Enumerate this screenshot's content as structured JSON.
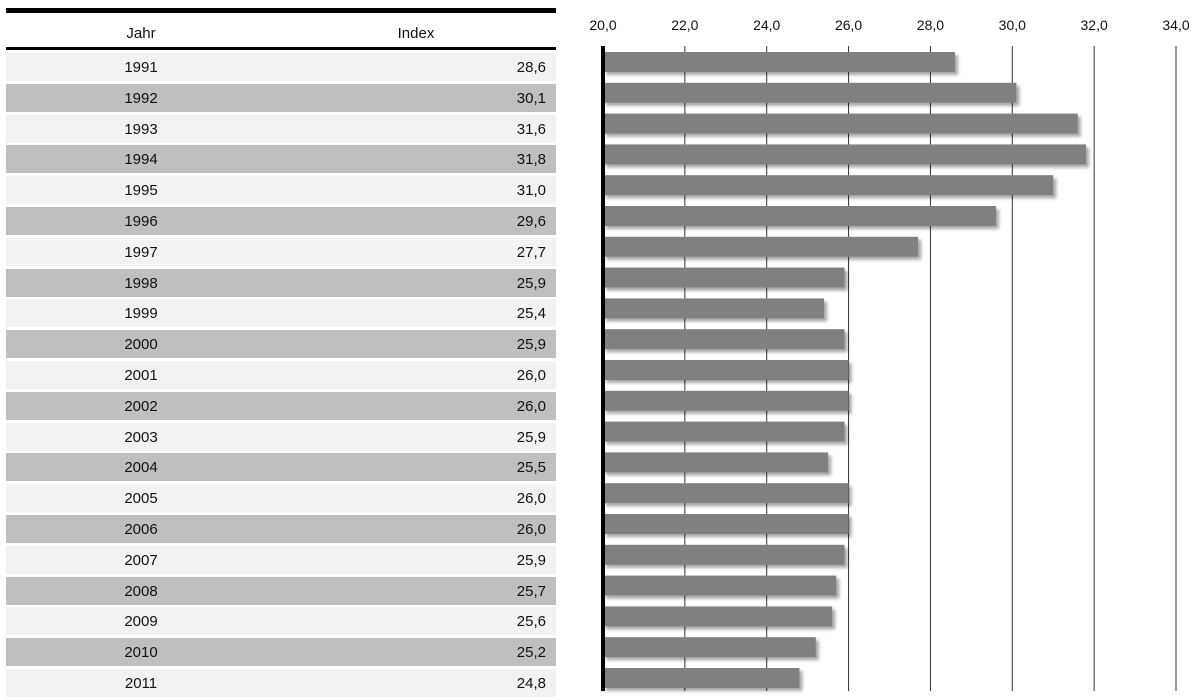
{
  "table": {
    "header_year": "Jahr",
    "header_value": "Index"
  },
  "chart_data": {
    "type": "bar",
    "orientation": "horizontal",
    "categories": [
      "1991",
      "1992",
      "1993",
      "1994",
      "1995",
      "1996",
      "1997",
      "1998",
      "1999",
      "2000",
      "2001",
      "2002",
      "2003",
      "2004",
      "2005",
      "2006",
      "2007",
      "2008",
      "2009",
      "2010",
      "2011"
    ],
    "values": [
      28.6,
      30.1,
      31.6,
      31.8,
      31.0,
      29.6,
      27.7,
      25.9,
      25.4,
      25.9,
      26.0,
      26.0,
      25.9,
      25.5,
      26.0,
      26.0,
      25.9,
      25.7,
      25.6,
      25.2,
      24.8
    ],
    "value_labels": [
      "28,6",
      "30,1",
      "31,6",
      "31,8",
      "31,0",
      "29,6",
      "27,7",
      "25,9",
      "25,4",
      "25,9",
      "26,0",
      "26,0",
      "25,9",
      "25,5",
      "26,0",
      "26,0",
      "25,9",
      "25,7",
      "25,6",
      "25,2",
      "24,8"
    ],
    "xlim": [
      20,
      34
    ],
    "ticks": [
      20,
      22,
      24,
      26,
      28,
      30,
      32,
      34
    ],
    "tick_labels": [
      "20,0",
      "22,0",
      "24,0",
      "26,0",
      "28,0",
      "30,0",
      "32,0",
      "34,0"
    ],
    "grid": true,
    "colors": {
      "bar": "#808080",
      "odd_row": "#f2f2f2",
      "even_row": "#bfbfbf"
    }
  }
}
